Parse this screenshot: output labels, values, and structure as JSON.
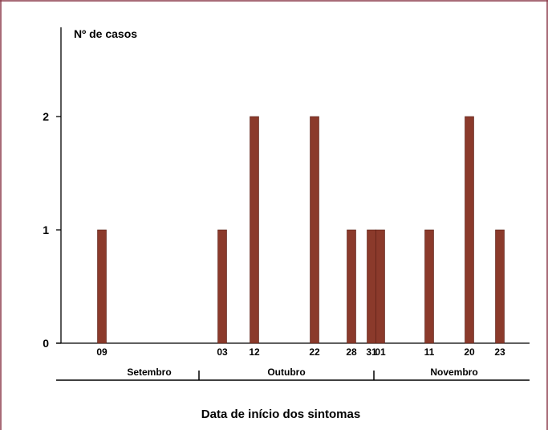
{
  "chart_data": {
    "type": "bar",
    "ylabel": "Nº de casos",
    "xlabel": "Data de início dos sintomas",
    "yticks": [
      "0",
      "1",
      "2"
    ],
    "ylim": [
      0,
      2.6
    ],
    "grid": false,
    "bar_color": "#8b3a2b",
    "frame_color": "#8b3a4a",
    "bars": [
      {
        "date": "09",
        "month": "Setembro",
        "value": 1
      },
      {
        "date": "03",
        "month": "Outubro",
        "value": 1
      },
      {
        "date": "12",
        "month": "Outubro",
        "value": 2
      },
      {
        "date": "22",
        "month": "Outubro",
        "value": 2
      },
      {
        "date": "28",
        "month": "Outubro",
        "value": 1
      },
      {
        "date": "31",
        "month": "Outubro",
        "value": 1
      },
      {
        "date": "01",
        "month": "Novembro",
        "value": 1
      },
      {
        "date": "11",
        "month": "Novembro",
        "value": 1
      },
      {
        "date": "20",
        "month": "Novembro",
        "value": 2
      },
      {
        "date": "23",
        "month": "Novembro",
        "value": 1
      }
    ],
    "months": [
      "Setembro",
      "Outubro",
      "Novembro"
    ]
  }
}
